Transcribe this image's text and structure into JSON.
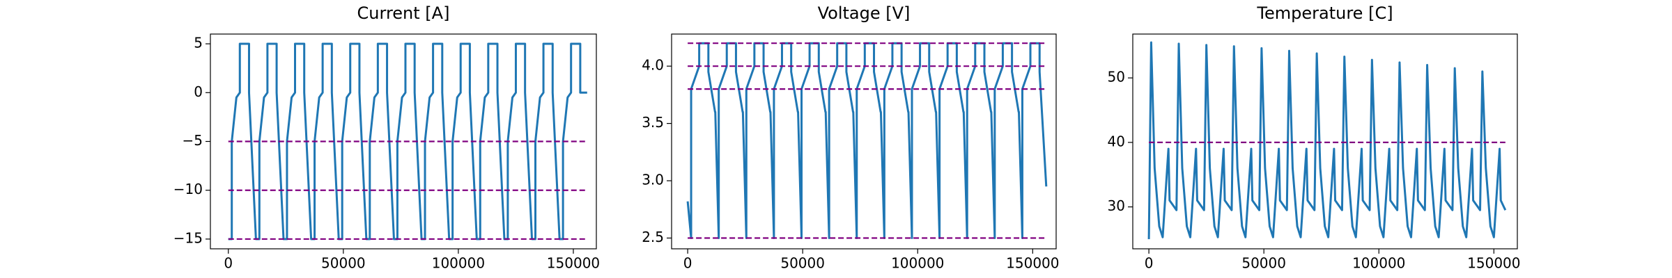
{
  "chart_data": [
    {
      "type": "line",
      "title": "Current [A]",
      "x": [
        0,
        1500,
        1500,
        3500,
        5000,
        5000,
        9000,
        9000,
        12000,
        13500,
        13500,
        15500,
        17000,
        17000,
        21000,
        21000,
        24000,
        25500,
        25500,
        27500,
        29000,
        29000,
        33000,
        33000,
        36000,
        37500,
        37500,
        39500,
        41000,
        41000,
        45000,
        45000,
        48000,
        49500,
        49500,
        51500,
        53000,
        53000,
        57000,
        57000,
        60000,
        61500,
        61500,
        63500,
        65000,
        65000,
        69000,
        69000,
        72000,
        73500,
        73500,
        75500,
        77000,
        77000,
        81000,
        81000,
        84000,
        85500,
        85500,
        87500,
        89000,
        89000,
        93000,
        93000,
        96000,
        97500,
        97500,
        99500,
        101000,
        101000,
        105000,
        105000,
        108000,
        109500,
        109500,
        111500,
        113000,
        113000,
        117000,
        117000,
        120000,
        121500,
        121500,
        123500,
        125000,
        125000,
        129000,
        129000,
        132000,
        133500,
        133500,
        135500,
        137000,
        137000,
        141000,
        141000,
        144000,
        145500,
        145500,
        147500,
        149000,
        149000,
        153000,
        153000,
        156000
      ],
      "series": [
        {
          "color": "#1f77b4",
          "values": [
            -15,
            -15,
            -5,
            -0.5,
            0,
            5,
            5,
            0,
            -15,
            -15,
            -5,
            -0.5,
            0,
            5,
            5,
            0,
            -15,
            -15,
            -5,
            -0.5,
            0,
            5,
            5,
            0,
            -15,
            -15,
            -5,
            -0.5,
            0,
            5,
            5,
            0,
            -15,
            -15,
            -5,
            -0.5,
            0,
            5,
            5,
            0,
            -15,
            -15,
            -5,
            -0.5,
            0,
            5,
            5,
            0,
            -15,
            -15,
            -5,
            -0.5,
            0,
            5,
            5,
            0,
            -15,
            -15,
            -5,
            -0.5,
            0,
            5,
            5,
            0,
            -15,
            -15,
            -5,
            -0.5,
            0,
            5,
            5,
            0,
            -15,
            -15,
            -5,
            -0.5,
            0,
            5,
            5,
            0,
            -15,
            -15,
            -5,
            -0.5,
            0,
            5,
            5,
            0,
            -15,
            -15,
            -5,
            -0.5,
            0,
            5,
            5,
            0,
            -15,
            -15,
            -5,
            -0.5,
            0,
            5,
            5,
            0,
            0
          ]
        }
      ],
      "reference_lines": {
        "color": "#800080",
        "values": [
          -5,
          -10,
          -15
        ]
      },
      "xlim": [
        -7800,
        160000
      ],
      "ylim": [
        -16,
        6
      ],
      "xticks": [
        0,
        50000,
        100000,
        150000
      ],
      "yticks": [
        {
          "value": -15,
          "label": "−15"
        },
        {
          "value": -10,
          "label": "−10"
        },
        {
          "value": -5,
          "label": "−5"
        },
        0,
        5
      ]
    },
    {
      "type": "line",
      "title": "Voltage [V]",
      "x": [
        0,
        1500,
        1500,
        5000,
        5000,
        9000,
        9000,
        11900,
        12000,
        13500,
        13500,
        17000,
        17000,
        21000,
        21000,
        23900,
        24000,
        25500,
        25500,
        29000,
        29000,
        33000,
        33000,
        35900,
        36000,
        37500,
        37500,
        41000,
        41000,
        45000,
        45000,
        47900,
        48000,
        49500,
        49500,
        53000,
        53000,
        57000,
        57000,
        59900,
        60000,
        61500,
        61500,
        65000,
        65000,
        69000,
        69000,
        71900,
        72000,
        73500,
        73500,
        77000,
        77000,
        81000,
        81000,
        83900,
        84000,
        85500,
        85500,
        89000,
        89000,
        93000,
        93000,
        95900,
        96000,
        97500,
        97500,
        101000,
        101000,
        105000,
        105000,
        107900,
        108000,
        109500,
        109500,
        113000,
        113000,
        117000,
        117000,
        119900,
        120000,
        121500,
        121500,
        125000,
        125000,
        129000,
        129000,
        131900,
        132000,
        133500,
        133500,
        137000,
        137000,
        141000,
        141000,
        143900,
        144000,
        145500,
        145500,
        149000,
        149000,
        153000,
        153000,
        155900
      ],
      "series": [
        {
          "color": "#1f77b4",
          "values": [
            2.82,
            2.5,
            3.8,
            4.0,
            4.2,
            4.2,
            3.95,
            3.6,
            3.6,
            2.5,
            3.8,
            4.0,
            4.2,
            4.2,
            3.95,
            3.6,
            3.6,
            2.5,
            3.8,
            4.0,
            4.2,
            4.2,
            3.95,
            3.6,
            3.6,
            2.5,
            3.8,
            4.0,
            4.2,
            4.2,
            3.95,
            3.6,
            3.6,
            2.5,
            3.8,
            4.0,
            4.2,
            4.2,
            3.95,
            3.6,
            3.6,
            2.5,
            3.8,
            4.0,
            4.2,
            4.2,
            3.95,
            3.6,
            3.6,
            2.5,
            3.8,
            4.0,
            4.2,
            4.2,
            3.95,
            3.6,
            3.6,
            2.5,
            3.8,
            4.0,
            4.2,
            4.2,
            3.95,
            3.6,
            3.6,
            2.5,
            3.8,
            4.0,
            4.2,
            4.2,
            3.95,
            3.6,
            3.6,
            2.5,
            3.8,
            4.0,
            4.2,
            4.2,
            3.95,
            3.6,
            3.6,
            2.5,
            3.8,
            4.0,
            4.2,
            4.2,
            3.95,
            3.6,
            3.6,
            2.5,
            3.8,
            4.0,
            4.2,
            4.2,
            3.95,
            3.6,
            3.6,
            2.5,
            3.8,
            4.0,
            4.2,
            4.2,
            3.95,
            2.95
          ]
        }
      ],
      "reference_lines": {
        "color": "#800080",
        "values": [
          4.2,
          4.0,
          3.8,
          2.5
        ]
      },
      "xlim": [
        -7000,
        160200
      ],
      "ylim": [
        2.406,
        4.28
      ],
      "xticks": [
        0,
        50000,
        100000,
        150000
      ],
      "yticks": [
        2.5,
        {
          "value": 3,
          "label": "3.0"
        },
        3.5,
        {
          "value": 4,
          "label": "4.0"
        }
      ]
    },
    {
      "type": "line",
      "title": "Temperature [C]",
      "x": [
        0,
        1000,
        2500,
        4500,
        6000,
        8500,
        9000,
        11000,
        12000,
        13000,
        14500,
        16500,
        18000,
        20500,
        21000,
        23000,
        24000,
        25000,
        26500,
        28500,
        30000,
        32500,
        33000,
        35000,
        36000,
        37000,
        38500,
        40500,
        42000,
        44500,
        45000,
        47000,
        48000,
        49000,
        50500,
        52500,
        54000,
        56500,
        57000,
        59000,
        60000,
        61000,
        62500,
        64500,
        66000,
        68500,
        69000,
        71000,
        72000,
        73000,
        74500,
        76500,
        78000,
        80500,
        81000,
        83000,
        84000,
        85000,
        86500,
        88500,
        90000,
        92500,
        93000,
        95000,
        96000,
        97000,
        98500,
        100500,
        102000,
        104500,
        105000,
        107000,
        108000,
        109000,
        110500,
        112500,
        114000,
        116500,
        117000,
        119000,
        120000,
        121000,
        122500,
        124500,
        126000,
        128500,
        129000,
        131000,
        132000,
        133000,
        134500,
        136500,
        138000,
        140500,
        141000,
        143000,
        144000,
        145000,
        146500,
        148500,
        150000,
        152500,
        153000,
        155000
      ],
      "series": [
        {
          "color": "#1f77b4",
          "values": [
            25,
            55.5,
            36,
            27,
            25.3,
            39,
            31,
            30,
            29.5,
            55.3,
            36,
            27,
            25.3,
            39,
            31,
            30,
            29.5,
            55.1,
            36,
            27,
            25.3,
            39,
            31,
            30,
            29.5,
            54.9,
            36,
            27,
            25.3,
            39,
            31,
            30,
            29.5,
            54.6,
            36,
            27,
            25.3,
            39,
            31,
            30,
            29.5,
            54.2,
            36,
            27,
            25.3,
            39,
            31,
            30,
            29.5,
            53.8,
            36,
            27,
            25.3,
            39,
            31,
            30,
            29.5,
            53.3,
            36,
            27,
            25.3,
            39,
            31,
            30,
            29.5,
            52.8,
            36,
            27,
            25.3,
            39,
            31,
            30,
            29.5,
            52.4,
            36,
            27,
            25.3,
            39,
            31,
            30,
            29.5,
            52,
            36,
            27,
            25.3,
            39,
            31,
            30,
            29.5,
            51.5,
            36,
            27,
            25.3,
            39,
            31,
            30,
            29.5,
            51,
            36,
            27,
            25.3,
            39,
            31,
            29.5
          ]
        }
      ],
      "reference_lines": {
        "color": "#800080",
        "values": [
          40
        ]
      },
      "xlim": [
        -7000,
        160200
      ],
      "ylim": [
        23.5,
        56.8
      ],
      "xticks": [
        0,
        50000,
        100000,
        150000
      ],
      "yticks": [
        30,
        40,
        50
      ]
    }
  ]
}
